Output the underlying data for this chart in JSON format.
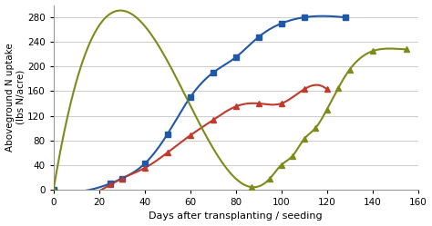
{
  "blue_data": [
    [
      0,
      0
    ],
    [
      25,
      10
    ],
    [
      30,
      18
    ],
    [
      40,
      42
    ],
    [
      50,
      90
    ],
    [
      60,
      150
    ],
    [
      70,
      190
    ],
    [
      80,
      215
    ],
    [
      90,
      248
    ],
    [
      100,
      270
    ],
    [
      110,
      280
    ],
    [
      128,
      280
    ]
  ],
  "red_data": [
    [
      0,
      0
    ],
    [
      25,
      8
    ],
    [
      30,
      18
    ],
    [
      40,
      35
    ],
    [
      50,
      60
    ],
    [
      60,
      88
    ],
    [
      70,
      113
    ],
    [
      80,
      135
    ],
    [
      90,
      140
    ],
    [
      100,
      140
    ],
    [
      110,
      163
    ],
    [
      120,
      163
    ]
  ],
  "green_data": [
    [
      0,
      0
    ],
    [
      87,
      4
    ],
    [
      95,
      18
    ],
    [
      100,
      40
    ],
    [
      105,
      55
    ],
    [
      110,
      82
    ],
    [
      115,
      100
    ],
    [
      120,
      130
    ],
    [
      125,
      165
    ],
    [
      130,
      195
    ],
    [
      140,
      225
    ],
    [
      155,
      228
    ]
  ],
  "blue_color": "#2058A8",
  "red_color": "#C0392B",
  "green_color": "#7D8B1A",
  "ylabel": "Aboveground N uptake\n(lbs N/acre)",
  "xlabel": "Days after transplanting / seeding",
  "xlim": [
    0,
    160
  ],
  "ylim": [
    0,
    300
  ],
  "yticks": [
    0,
    40,
    80,
    120,
    160,
    200,
    240,
    280
  ],
  "xticks": [
    0,
    20,
    40,
    60,
    80,
    100,
    120,
    140,
    160
  ],
  "figsize": [
    4.74,
    2.49
  ],
  "dpi": 100
}
